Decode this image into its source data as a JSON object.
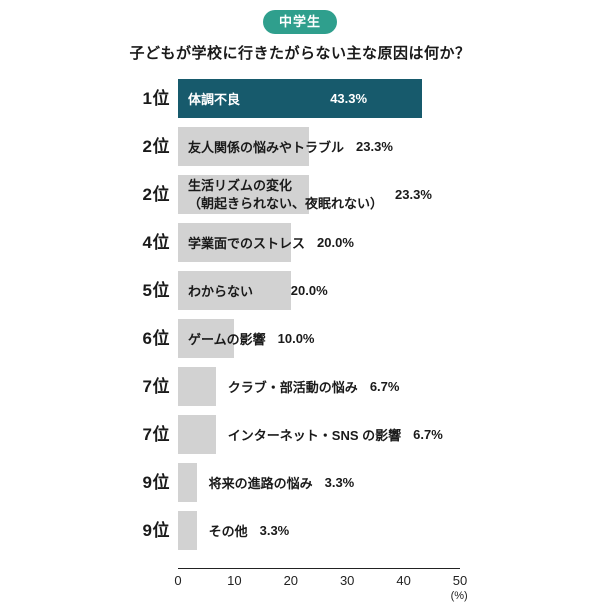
{
  "badge": "中学生",
  "title": "子どもが学校に行きたがらない主な原因は何か？",
  "chart_data": {
    "type": "bar",
    "orientation": "horizontal",
    "title": "子どもが学校に行きたがらない主な原因は何か？",
    "group_badge": "中学生",
    "xlabel": "(%)",
    "ylabel": "",
    "xlim": [
      0,
      50
    ],
    "x_ticks": [
      "0",
      "10",
      "20",
      "30",
      "40",
      "50"
    ],
    "x_tick_values": [
      0,
      10,
      20,
      30,
      40,
      50
    ],
    "grid": false,
    "legend": "none",
    "colors": {
      "highlight_bar": "#175a6c",
      "bar": "#d2d2d2",
      "badge": "#2f9f8d",
      "text": "#1a1a1a"
    },
    "bars": [
      {
        "rank": "1位",
        "label": "体調不良",
        "value": 43.3,
        "display": "43.3%",
        "highlight": true,
        "label_outside": false
      },
      {
        "rank": "2位",
        "label": "友人関係の悩みやトラブル",
        "value": 23.3,
        "display": "23.3%",
        "highlight": false,
        "label_outside": false
      },
      {
        "rank": "2位",
        "label": "生活リズムの変化",
        "label2": "（朝起きられない、夜眠れない）",
        "value": 23.3,
        "display": "23.3%",
        "highlight": false,
        "label_outside": false
      },
      {
        "rank": "4位",
        "label": "学業面でのストレス",
        "value": 20.0,
        "display": "20.0%",
        "highlight": false,
        "label_outside": false
      },
      {
        "rank": "5位",
        "label": "わからない",
        "value": 20.0,
        "display": "20.0%",
        "highlight": false,
        "label_outside": false
      },
      {
        "rank": "6位",
        "label": "ゲームの影響",
        "value": 10.0,
        "display": "10.0%",
        "highlight": false,
        "label_outside": false
      },
      {
        "rank": "7位",
        "label": "クラブ・部活動の悩み",
        "value": 6.7,
        "display": "6.7%",
        "highlight": false,
        "label_outside": true
      },
      {
        "rank": "7位",
        "label": "インターネット・SNS の影響",
        "value": 6.7,
        "display": "6.7%",
        "highlight": false,
        "label_outside": true
      },
      {
        "rank": "9位",
        "label": "将来の進路の悩み",
        "value": 3.3,
        "display": "3.3%",
        "highlight": false,
        "label_outside": true
      },
      {
        "rank": "9位",
        "label": "その他",
        "value": 3.3,
        "display": "3.3%",
        "highlight": false,
        "label_outside": true
      }
    ]
  }
}
